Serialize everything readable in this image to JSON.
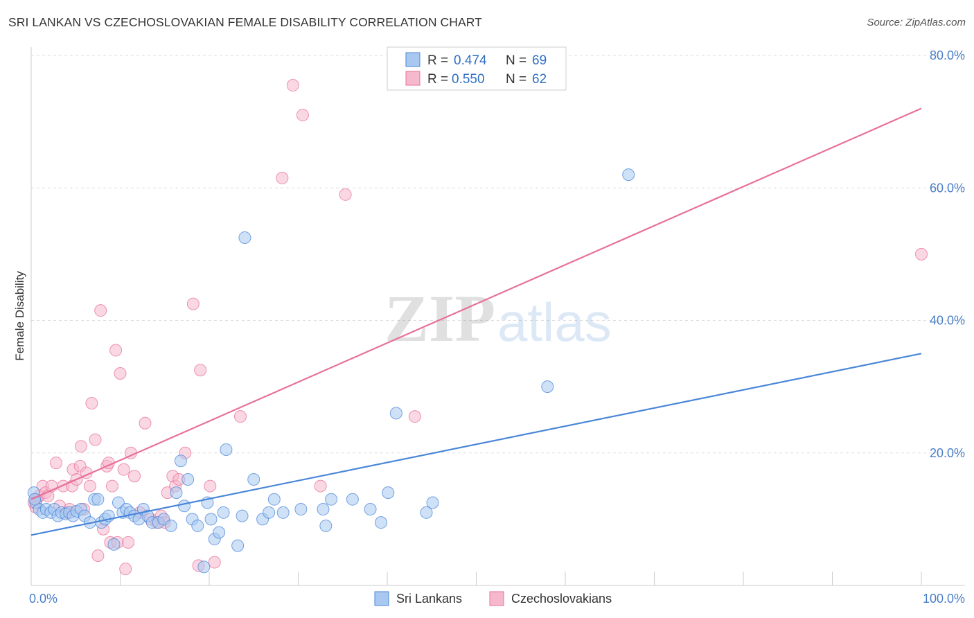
{
  "title": "SRI LANKAN VS CZECHOSLOVAKIAN FEMALE DISABILITY CORRELATION CHART",
  "source": "Source: ZipAtlas.com",
  "watermark": {
    "zip": "ZIP",
    "atlas": "atlas"
  },
  "colors": {
    "blue": "#4a86d8",
    "blue_fill": "#a8c8f0",
    "pink": "#e8709a",
    "pink_fill": "#f6b8cc",
    "tick": "#4a7ec8"
  },
  "legend": {
    "r_label": "R =",
    "n_label": "N =",
    "series": [
      {
        "name": "Sri Lankans",
        "r": "0.474",
        "n": "69"
      },
      {
        "name": "Czechoslovakians",
        "r": "0.550",
        "n": "62"
      }
    ]
  },
  "chart_data": {
    "type": "scatter",
    "title": "SRI LANKAN VS CZECHOSLOVAKIAN FEMALE DISABILITY CORRELATION CHART",
    "xlabel": "",
    "ylabel": "Female Disability",
    "xlim": [
      0,
      100
    ],
    "ylim": [
      0,
      80
    ],
    "x_tick_labels": [
      {
        "value": 0,
        "label": "0.0%"
      },
      {
        "value": 100,
        "label": "100.0%"
      }
    ],
    "y_tick_labels": [
      {
        "value": 20,
        "label": "20.0%"
      },
      {
        "value": 40,
        "label": "40.0%"
      },
      {
        "value": 60,
        "label": "60.0%"
      },
      {
        "value": 80,
        "label": "80.0%"
      }
    ],
    "grid": true,
    "series": [
      {
        "name": "Sri Lankans",
        "trend": {
          "x": [
            0,
            100
          ],
          "y": [
            7.6,
            35.0
          ]
        },
        "points": [
          [
            0.3,
            14.0
          ],
          [
            0.5,
            12.5
          ],
          [
            0.9,
            11.5
          ],
          [
            1.3,
            11.0
          ],
          [
            1.7,
            11.5
          ],
          [
            2.2,
            11.0
          ],
          [
            2.6,
            11.5
          ],
          [
            3.0,
            10.5
          ],
          [
            3.4,
            11.0
          ],
          [
            3.9,
            10.8
          ],
          [
            4.3,
            11.0
          ],
          [
            4.7,
            10.5
          ],
          [
            5.1,
            11.2
          ],
          [
            5.6,
            11.5
          ],
          [
            6.0,
            10.5
          ],
          [
            6.6,
            9.5
          ],
          [
            7.1,
            13.0
          ],
          [
            7.5,
            13.0
          ],
          [
            7.9,
            9.5
          ],
          [
            8.3,
            10.0
          ],
          [
            8.7,
            10.5
          ],
          [
            9.3,
            6.2
          ],
          [
            9.8,
            12.5
          ],
          [
            10.3,
            11.0
          ],
          [
            10.7,
            11.5
          ],
          [
            11.1,
            11.0
          ],
          [
            11.6,
            10.5
          ],
          [
            12.1,
            10.0
          ],
          [
            12.6,
            11.5
          ],
          [
            13.1,
            10.5
          ],
          [
            13.6,
            9.5
          ],
          [
            14.3,
            9.5
          ],
          [
            14.9,
            10.0
          ],
          [
            15.7,
            9.0
          ],
          [
            16.3,
            14.0
          ],
          [
            16.8,
            18.8
          ],
          [
            17.2,
            12.0
          ],
          [
            17.6,
            16.0
          ],
          [
            18.1,
            10.0
          ],
          [
            18.7,
            9.0
          ],
          [
            19.4,
            2.8
          ],
          [
            19.8,
            12.5
          ],
          [
            20.2,
            10.0
          ],
          [
            20.6,
            7.0
          ],
          [
            21.1,
            8.0
          ],
          [
            21.6,
            11.0
          ],
          [
            21.9,
            20.5
          ],
          [
            23.2,
            6.0
          ],
          [
            23.7,
            10.5
          ],
          [
            24.0,
            52.5
          ],
          [
            25.0,
            16.0
          ],
          [
            26.0,
            10.0
          ],
          [
            26.7,
            11.0
          ],
          [
            27.3,
            13.0
          ],
          [
            28.3,
            11.0
          ],
          [
            30.3,
            11.5
          ],
          [
            32.8,
            11.5
          ],
          [
            33.1,
            9.0
          ],
          [
            33.7,
            13.0
          ],
          [
            36.1,
            13.0
          ],
          [
            38.1,
            11.5
          ],
          [
            39.3,
            9.5
          ],
          [
            40.1,
            14.0
          ],
          [
            41.0,
            26.0
          ],
          [
            44.4,
            11.0
          ],
          [
            45.1,
            12.5
          ],
          [
            58.0,
            30.0
          ],
          [
            67.1,
            62.0
          ],
          [
            0.4,
            13.0
          ]
        ]
      },
      {
        "name": "Czechoslovakians",
        "trend": {
          "x": [
            0,
            100
          ],
          "y": [
            13.0,
            72.0
          ]
        },
        "points": [
          [
            0.3,
            12.5
          ],
          [
            0.6,
            13.0
          ],
          [
            0.9,
            13.5
          ],
          [
            1.3,
            15.0
          ],
          [
            1.6,
            14.0
          ],
          [
            1.9,
            13.5
          ],
          [
            2.3,
            15.0
          ],
          [
            2.8,
            18.5
          ],
          [
            3.2,
            12.0
          ],
          [
            3.6,
            15.0
          ],
          [
            4.0,
            11.0
          ],
          [
            4.3,
            11.5
          ],
          [
            4.6,
            15.0
          ],
          [
            4.7,
            17.5
          ],
          [
            5.1,
            16.0
          ],
          [
            5.5,
            18.0
          ],
          [
            5.6,
            21.0
          ],
          [
            5.9,
            11.5
          ],
          [
            6.2,
            17.0
          ],
          [
            6.6,
            15.0
          ],
          [
            6.8,
            27.5
          ],
          [
            7.2,
            22.0
          ],
          [
            7.5,
            4.5
          ],
          [
            7.8,
            41.5
          ],
          [
            8.1,
            8.5
          ],
          [
            8.5,
            18.0
          ],
          [
            8.7,
            18.5
          ],
          [
            8.9,
            6.5
          ],
          [
            9.1,
            15.0
          ],
          [
            9.5,
            35.5
          ],
          [
            9.7,
            6.5
          ],
          [
            10.0,
            32.0
          ],
          [
            10.4,
            17.5
          ],
          [
            10.6,
            2.5
          ],
          [
            10.9,
            6.5
          ],
          [
            11.2,
            20.0
          ],
          [
            11.6,
            16.5
          ],
          [
            12.2,
            11.0
          ],
          [
            12.8,
            24.5
          ],
          [
            13.4,
            10.0
          ],
          [
            14.1,
            9.5
          ],
          [
            14.6,
            10.5
          ],
          [
            15.0,
            9.5
          ],
          [
            15.3,
            14.0
          ],
          [
            15.9,
            16.5
          ],
          [
            16.2,
            15.0
          ],
          [
            16.6,
            16.0
          ],
          [
            17.3,
            20.0
          ],
          [
            18.2,
            42.5
          ],
          [
            18.8,
            3.0
          ],
          [
            19.0,
            32.5
          ],
          [
            20.1,
            15.0
          ],
          [
            20.6,
            3.5
          ],
          [
            23.5,
            25.5
          ],
          [
            28.2,
            61.5
          ],
          [
            29.4,
            75.5
          ],
          [
            30.5,
            71.0
          ],
          [
            32.5,
            15.0
          ],
          [
            35.3,
            59.0
          ],
          [
            43.1,
            25.5
          ],
          [
            100.0,
            50.0
          ],
          [
            0.5,
            11.8
          ]
        ]
      }
    ]
  },
  "bottom_legend": [
    "Sri Lankans",
    "Czechoslovakians"
  ]
}
